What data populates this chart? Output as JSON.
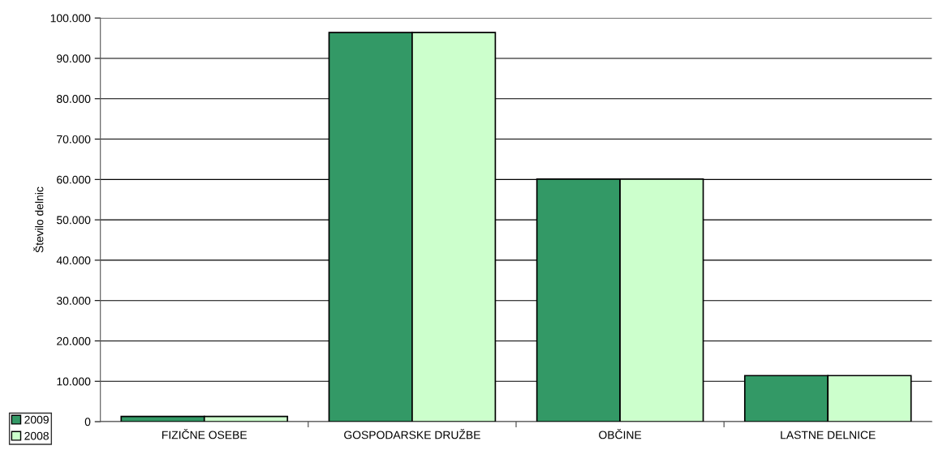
{
  "chart_data": {
    "type": "bar",
    "ylabel": "Število delnic",
    "categories": [
      "FIZIČNE OSEBE",
      "GOSPODARSKE DRUŽBE",
      "OBČINE",
      "LASTNE DELNICE"
    ],
    "series": [
      {
        "name": "2009",
        "color": "#339966",
        "values": [
          1300,
          96400,
          60100,
          11400
        ]
      },
      {
        "name": "2008",
        "color": "#ccffcc",
        "values": [
          1300,
          96400,
          60100,
          11400
        ]
      }
    ],
    "ylim": [
      0,
      100000
    ],
    "yticks": [
      {
        "value": 0,
        "label": "0"
      },
      {
        "value": 10000,
        "label": "10.000"
      },
      {
        "value": 20000,
        "label": "20.000"
      },
      {
        "value": 30000,
        "label": "30.000"
      },
      {
        "value": 40000,
        "label": "40.000"
      },
      {
        "value": 50000,
        "label": "50.000"
      },
      {
        "value": 60000,
        "label": "60.000"
      },
      {
        "value": 70000,
        "label": "70.000"
      },
      {
        "value": 80000,
        "label": "80.000"
      },
      {
        "value": 90000,
        "label": "90.000"
      },
      {
        "value": 100000,
        "label": "100.000"
      }
    ],
    "grid": "y",
    "legend": "bottom left"
  }
}
